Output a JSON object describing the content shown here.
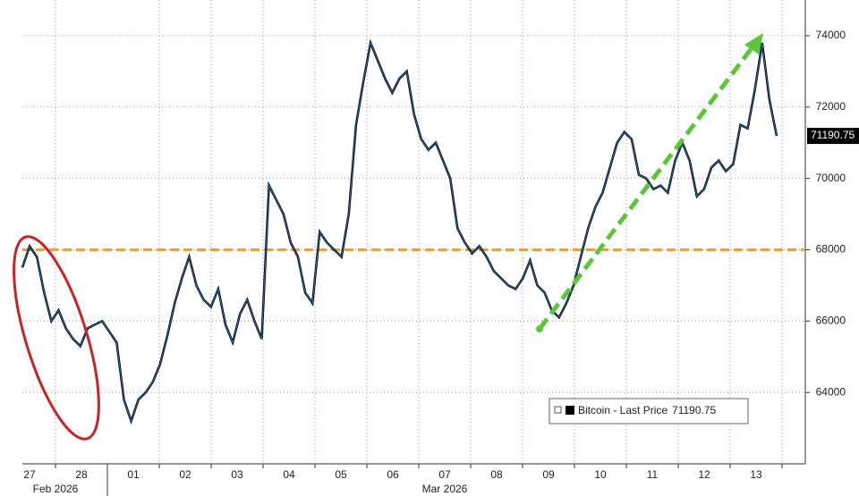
{
  "chart_data": {
    "type": "line",
    "series": [
      {
        "name": "Bitcoin - Last Price",
        "color": "#2a6bb5",
        "values": [
          67500,
          68100,
          67800,
          66800,
          66000,
          66300,
          65800,
          65500,
          65300,
          65800,
          65900,
          66000,
          65700,
          65400,
          63800,
          63200,
          63800,
          64000,
          64300,
          64800,
          65600,
          66500,
          67200,
          67800,
          67000,
          66600,
          66400,
          66900,
          65900,
          65400,
          66200,
          66600,
          66000,
          65500,
          69800,
          69400,
          69000,
          68200,
          67800,
          66800,
          66500,
          68500,
          68200,
          68000,
          67800,
          69000,
          71500,
          72700,
          73800,
          73300,
          72800,
          72400,
          72800,
          73000,
          71800,
          71100,
          70800,
          71000,
          70500,
          70000,
          68600,
          68200,
          67900,
          68100,
          67800,
          67400,
          67200,
          67000,
          66900,
          67200,
          67700,
          67000,
          66800,
          66300,
          66100,
          66500,
          67000,
          67800,
          68600,
          69200,
          69600,
          70300,
          71000,
          71300,
          71100,
          70100,
          70000,
          69700,
          69800,
          69600,
          70500,
          71000,
          70500,
          69500,
          69700,
          70300,
          70500,
          70200,
          70400,
          71500,
          71400,
          72500,
          73800,
          72200,
          71190.75
        ]
      }
    ],
    "last_price": 71190.75,
    "day_labels": [
      "27",
      "28",
      "01",
      "02",
      "03",
      "04",
      "05",
      "06",
      "07",
      "08",
      "09",
      "10",
      "11",
      "12",
      "13"
    ],
    "month_labels": [
      "Feb 2026",
      "Mar 2026"
    ],
    "ylim": [
      62000,
      75000
    ],
    "yticks": [
      64000,
      66000,
      68000,
      70000,
      72000,
      74000
    ],
    "reference_line": 68000,
    "grid": true
  }
}
